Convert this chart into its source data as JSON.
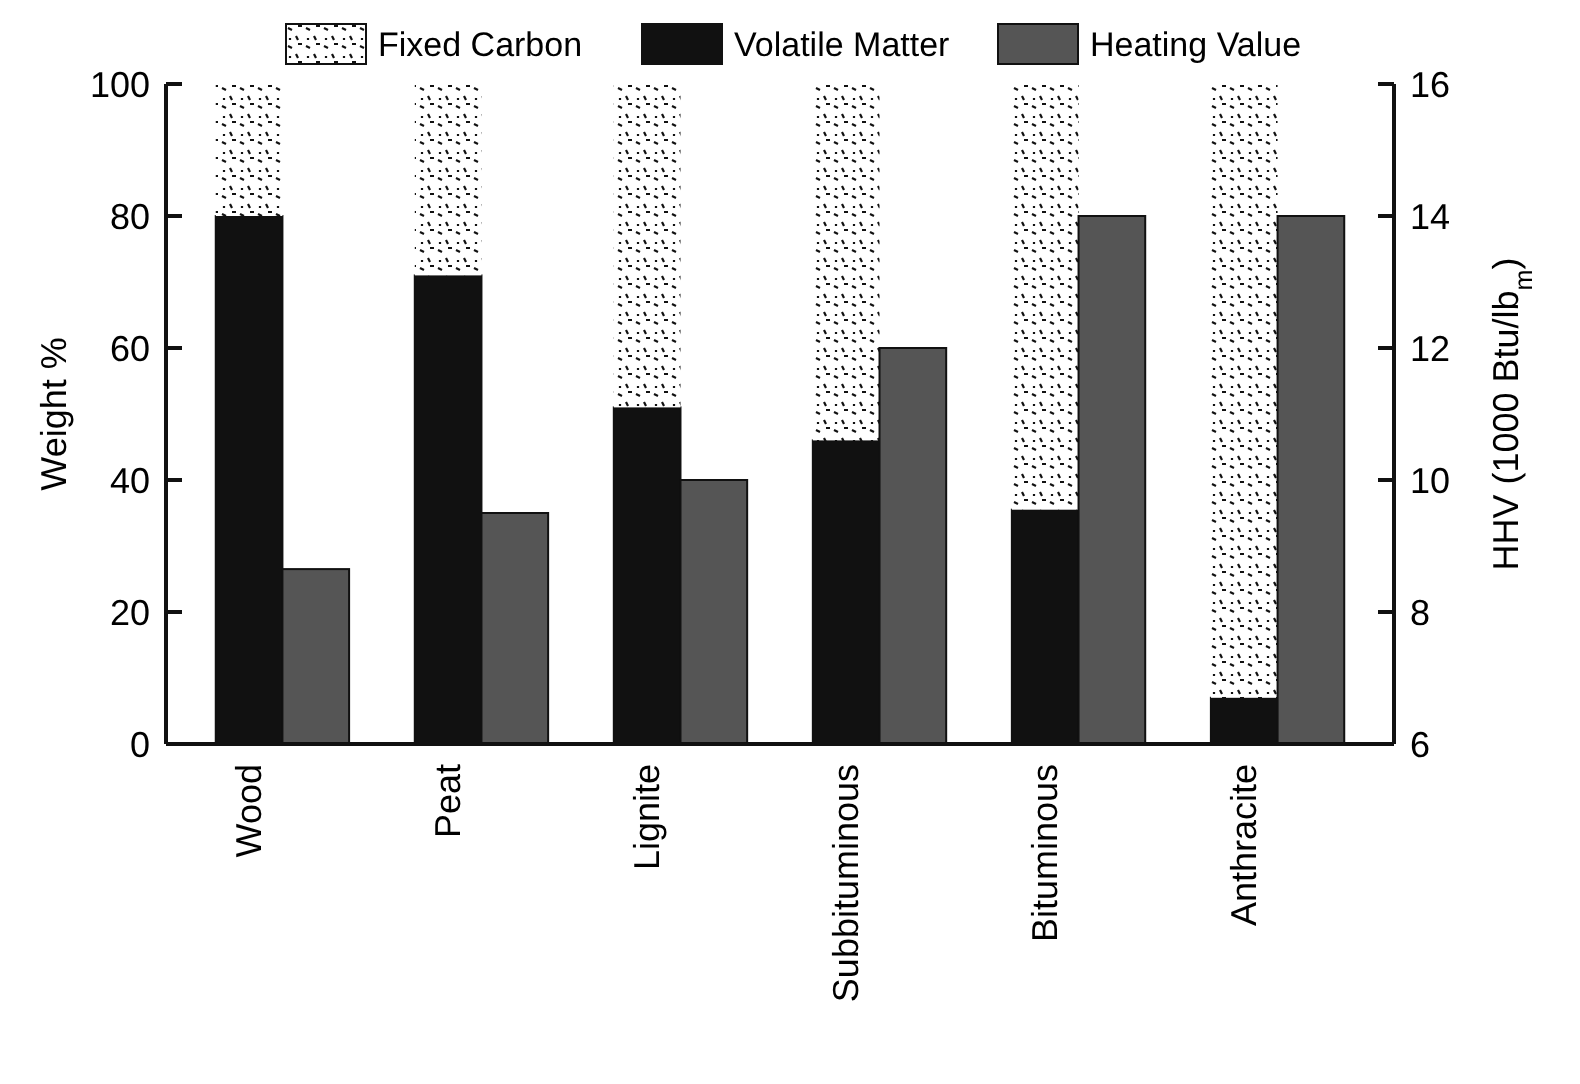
{
  "chart_data": {
    "type": "bar",
    "stacked": true,
    "categories": [
      "Wood",
      "Peat",
      "Lignite",
      "Subbituminous",
      "Bituminous",
      "Anthracite"
    ],
    "series": [
      {
        "name": "Volatile Matter",
        "color": "#111111",
        "values": [
          80,
          71,
          51,
          46,
          35.5,
          7
        ]
      },
      {
        "name": "Fixed Carbon",
        "color": "#ffffff",
        "values": [
          20,
          29,
          49,
          54,
          64.5,
          93
        ]
      },
      {
        "name": "Heating Value",
        "color": "#555555",
        "axis": "y2",
        "values": [
          8.65,
          9.5,
          10,
          12,
          14,
          14
        ]
      }
    ],
    "ylabel": "Weight %",
    "y2label": "HHV (1000 Btu/lb$_{m}$)",
    "ylim": [
      0,
      100
    ],
    "yticks": [
      0,
      20,
      40,
      60,
      80,
      100
    ],
    "y2lim": [
      6,
      16
    ],
    "y2ticks": [
      6,
      8,
      10,
      12,
      14,
      16
    ],
    "legend": "top",
    "grid": false
  }
}
